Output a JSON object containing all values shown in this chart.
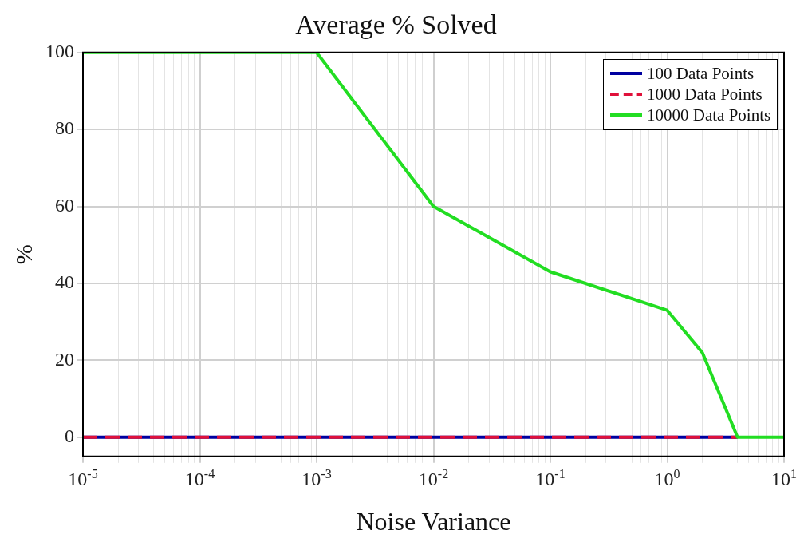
{
  "chart_data": {
    "type": "line",
    "title": "Average % Solved",
    "xlabel": "Noise Variance",
    "ylabel": "%",
    "log": "x",
    "x": [
      1e-05,
      0.0001,
      0.001,
      0.01,
      0.1,
      1,
      2,
      4,
      10
    ],
    "series": [
      {
        "name": "100 Data Points",
        "color": "#0000a0",
        "values": [
          0,
          0,
          0,
          0,
          0,
          0,
          0,
          0,
          null
        ],
        "line_style": "solid"
      },
      {
        "name": "1000 Data Points",
        "color": "#e0103a",
        "values": [
          0,
          0,
          0,
          0,
          0,
          0,
          0,
          0,
          null
        ],
        "line_style": "dashed"
      },
      {
        "name": "10000 Data Points",
        "color": "#22dd22",
        "values": [
          100,
          100,
          100,
          60,
          43,
          33,
          22,
          0,
          0
        ],
        "line_style": "solid"
      }
    ],
    "xlim": [
      1e-05,
      10
    ],
    "xticks": [
      {
        "value": 1e-05,
        "label": "10$^{-5}$"
      },
      {
        "value": 2e-05,
        "label": null
      },
      {
        "value": 3e-05,
        "label": null
      },
      {
        "value": 4e-05,
        "label": null
      },
      {
        "value": 5e-05,
        "label": null
      },
      {
        "value": 6e-05,
        "label": null
      },
      {
        "value": 7e-05,
        "label": null
      },
      {
        "value": 8e-05,
        "label": null
      },
      {
        "value": 9e-05,
        "label": null
      },
      {
        "value": 0.0001,
        "label": "10$^{-4}$"
      },
      {
        "value": 0.0002,
        "label": null
      },
      {
        "value": 0.0003,
        "label": null
      },
      {
        "value": 0.0004,
        "label": null
      },
      {
        "value": 0.0005,
        "label": null
      },
      {
        "value": 0.0006,
        "label": null
      },
      {
        "value": 0.0007,
        "label": null
      },
      {
        "value": 0.0008,
        "label": null
      },
      {
        "value": 0.0009,
        "label": null
      },
      {
        "value": 0.001,
        "label": "10$^{-3}$"
      },
      {
        "value": 0.002,
        "label": null
      },
      {
        "value": 0.003,
        "label": null
      },
      {
        "value": 0.004,
        "label": null
      },
      {
        "value": 0.005,
        "label": null
      },
      {
        "value": 0.006,
        "label": null
      },
      {
        "value": 0.007,
        "label": null
      },
      {
        "value": 0.008,
        "label": null
      },
      {
        "value": 0.009,
        "label": null
      },
      {
        "value": 0.01,
        "label": "10$^{-2}$"
      },
      {
        "value": 0.02,
        "label": null
      },
      {
        "value": 0.03,
        "label": null
      },
      {
        "value": 0.04,
        "label": null
      },
      {
        "value": 0.05,
        "label": null
      },
      {
        "value": 0.06,
        "label": null
      },
      {
        "value": 0.07,
        "label": null
      },
      {
        "value": 0.08,
        "label": null
      },
      {
        "value": 0.09,
        "label": null
      },
      {
        "value": 0.1,
        "label": "10$^{-1}$"
      },
      {
        "value": 0.2,
        "label": null
      },
      {
        "value": 0.3,
        "label": null
      },
      {
        "value": 0.4,
        "label": null
      },
      {
        "value": 0.5,
        "label": null
      },
      {
        "value": 0.6,
        "label": null
      },
      {
        "value": 0.7,
        "label": null
      },
      {
        "value": 0.8,
        "label": null
      },
      {
        "value": 0.9,
        "label": null
      },
      {
        "value": 1,
        "label": "10$^{0}$"
      },
      {
        "value": 2,
        "label": null
      },
      {
        "value": 3,
        "label": null
      },
      {
        "value": 4,
        "label": null
      },
      {
        "value": 5,
        "label": null
      },
      {
        "value": 6,
        "label": null
      },
      {
        "value": 7,
        "label": null
      },
      {
        "value": 8,
        "label": null
      },
      {
        "value": 9,
        "label": null
      },
      {
        "value": 10,
        "label": "10$^{1}$"
      }
    ],
    "ylim": [
      -5,
      100
    ],
    "yticks": [
      0,
      20,
      40,
      60,
      80,
      100
    ],
    "grid": true,
    "legend": "top right",
    "marker": "none"
  }
}
